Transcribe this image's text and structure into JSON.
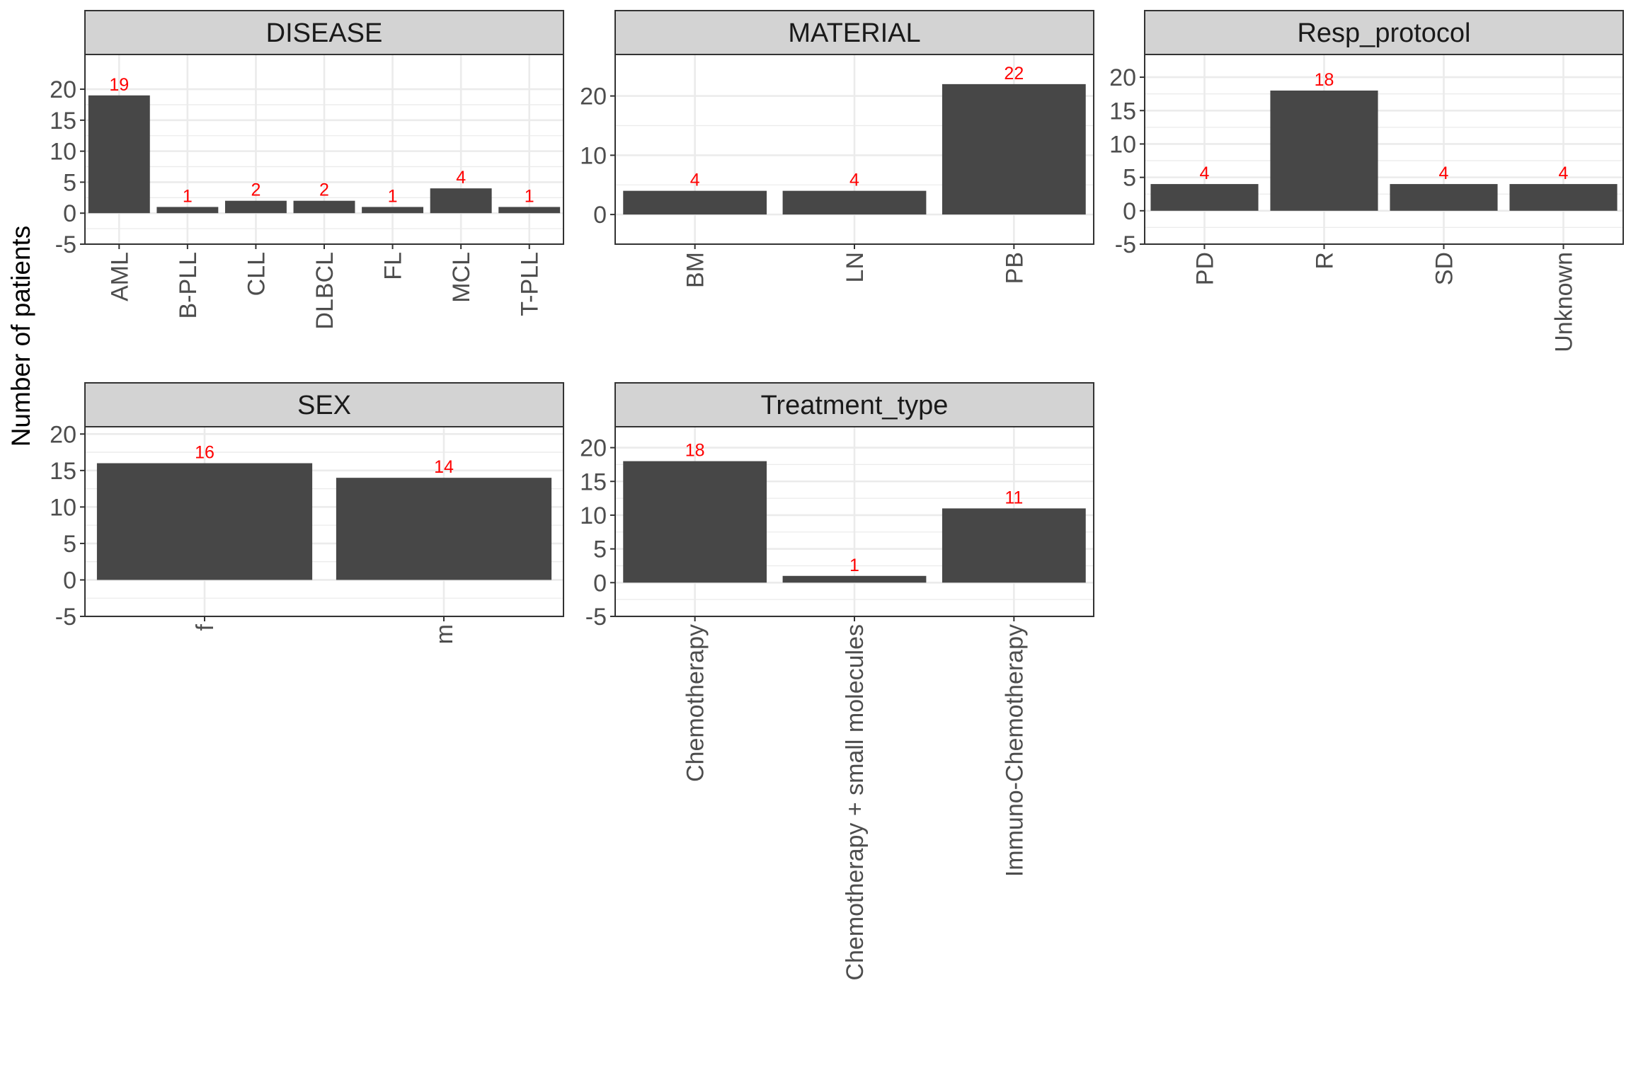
{
  "chart_data": {
    "type": "bar",
    "ylabel": "Number of patients",
    "colors": {
      "bar": "#474747",
      "label": "#ff0000",
      "strip": "#d3d3d3"
    },
    "grid": true,
    "panels": [
      {
        "title": "DISEASE",
        "categories": [
          "AML",
          "B-PLL",
          "CLL",
          "DLBCL",
          "FL",
          "MCL",
          "T-PLL"
        ],
        "values": [
          19,
          1,
          2,
          2,
          1,
          4,
          1
        ],
        "labels": [
          "19",
          "1",
          "2",
          "2",
          "1",
          "4",
          "1"
        ],
        "ylim": [
          -5,
          25.6
        ],
        "yticks": [
          -5,
          0,
          5,
          10,
          15,
          20
        ],
        "ytick_labels": [
          "-5",
          "0",
          "5",
          "10",
          "15",
          "20"
        ]
      },
      {
        "title": "MATERIAL",
        "categories": [
          "BM",
          "LN",
          "PB"
        ],
        "values": [
          4,
          4,
          22
        ],
        "labels": [
          "4",
          "4",
          "22"
        ],
        "ylim": [
          -5,
          27
        ],
        "yticks": [
          0,
          10,
          20
        ],
        "ytick_labels": [
          "0",
          "10",
          "20"
        ]
      },
      {
        "title": "Resp_protocol",
        "categories": [
          "PD",
          "R",
          "SD",
          "Unknown"
        ],
        "values": [
          4,
          18,
          4,
          4
        ],
        "labels": [
          "4",
          "18",
          "4",
          "4"
        ],
        "ylim": [
          -5,
          23.4
        ],
        "yticks": [
          -5,
          0,
          5,
          10,
          15,
          20
        ],
        "ytick_labels": [
          "-5",
          "0",
          "5",
          "10",
          "15",
          "20"
        ]
      },
      {
        "title": "SEX",
        "categories": [
          "f",
          "m"
        ],
        "values": [
          16,
          14
        ],
        "labels": [
          "16",
          "14"
        ],
        "ylim": [
          -5,
          21
        ],
        "yticks": [
          -5,
          0,
          5,
          10,
          15,
          20
        ],
        "ytick_labels": [
          "-5",
          "0",
          "5",
          "10",
          "15",
          "20"
        ]
      },
      {
        "title": "Treatment_type",
        "categories": [
          "Chemotherapy",
          "Chemotherapy + small molecules",
          "Immuno-Chemotherapy"
        ],
        "values": [
          18,
          1,
          11
        ],
        "labels": [
          "18",
          "1",
          "11"
        ],
        "ylim": [
          -5,
          23.1
        ],
        "yticks": [
          -5,
          0,
          5,
          10,
          15,
          20
        ],
        "ytick_labels": [
          "-5",
          "0",
          "5",
          "10",
          "15",
          "20"
        ]
      }
    ]
  }
}
